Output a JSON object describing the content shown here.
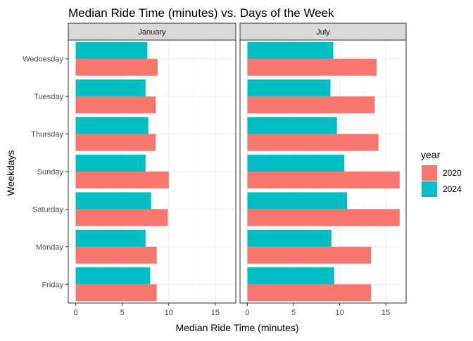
{
  "chart_data": {
    "type": "bar",
    "orientation": "horizontal",
    "title": "Median Ride Time (minutes) vs. Days of the Week",
    "xlabel": "Median Ride Time (minutes)",
    "ylabel": "Weekdays",
    "xlim": [
      -0.8,
      17.2
    ],
    "xticks": [
      "0",
      "5",
      "10",
      "15"
    ],
    "categories": [
      "Friday",
      "Monday",
      "Saturday",
      "Sunday",
      "Thursday",
      "Tuesday",
      "Wednesday"
    ],
    "legend": {
      "title": "year",
      "placement": "right"
    },
    "series_colors": {
      "2020": "#F8766D",
      "2024": "#00BFC4"
    },
    "panels": [
      {
        "name": "January",
        "series": [
          {
            "name": "2020",
            "values": [
              8.7,
              8.7,
              9.9,
              10.0,
              8.6,
              8.6,
              8.8
            ]
          },
          {
            "name": "2024",
            "values": [
              8.0,
              7.5,
              8.1,
              7.5,
              7.8,
              7.5,
              7.7
            ]
          }
        ]
      },
      {
        "name": "July",
        "series": [
          {
            "name": "2020",
            "values": [
              13.4,
              13.4,
              16.5,
              16.5,
              14.2,
              13.8,
              14.0
            ]
          },
          {
            "name": "2024",
            "values": [
              9.4,
              9.1,
              10.8,
              10.5,
              9.7,
              9.0,
              9.3
            ]
          }
        ]
      }
    ]
  }
}
